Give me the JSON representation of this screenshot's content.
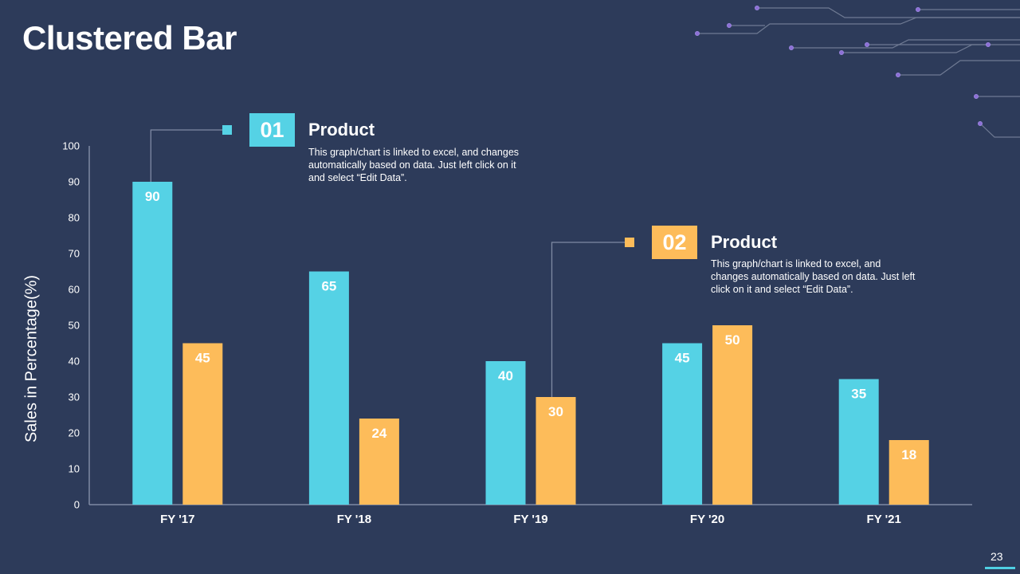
{
  "slide": {
    "title": "Clustered Bar",
    "page_number": "23"
  },
  "colors": {
    "background": "#2d3b5a",
    "product_01": "#55d2e5",
    "product_02": "#fdbc5a",
    "axis": "#7f8aa3",
    "circuit": "#6f7a93",
    "circuit_dot": "#8c6fd6"
  },
  "callouts": [
    {
      "number": "01",
      "title": "Product",
      "description": "This graph/chart is linked to excel,  and changes automatically based on data. Just left click  on it and select “Edit Data”."
    },
    {
      "number": "02",
      "title": "Product",
      "description": "This graph/chart is linked to excel,  and changes automatically based on data. Just left click on it and select “Edit Data”."
    }
  ],
  "chart_data": {
    "type": "bar",
    "title": "Clustered Bar",
    "xlabel": "",
    "ylabel": "Sales in Percentage(%)",
    "ylim": [
      0,
      100
    ],
    "yticks": [
      0,
      10,
      20,
      30,
      40,
      50,
      60,
      70,
      80,
      90,
      100
    ],
    "categories": [
      "FY '17",
      "FY '18",
      "FY '19",
      "FY '20",
      "FY '21"
    ],
    "series": [
      {
        "name": "Product 01",
        "values": [
          90,
          65,
          40,
          45,
          35
        ]
      },
      {
        "name": "Product 02",
        "values": [
          45,
          24,
          30,
          50,
          18
        ]
      }
    ],
    "grid": false,
    "data_labels": true
  }
}
